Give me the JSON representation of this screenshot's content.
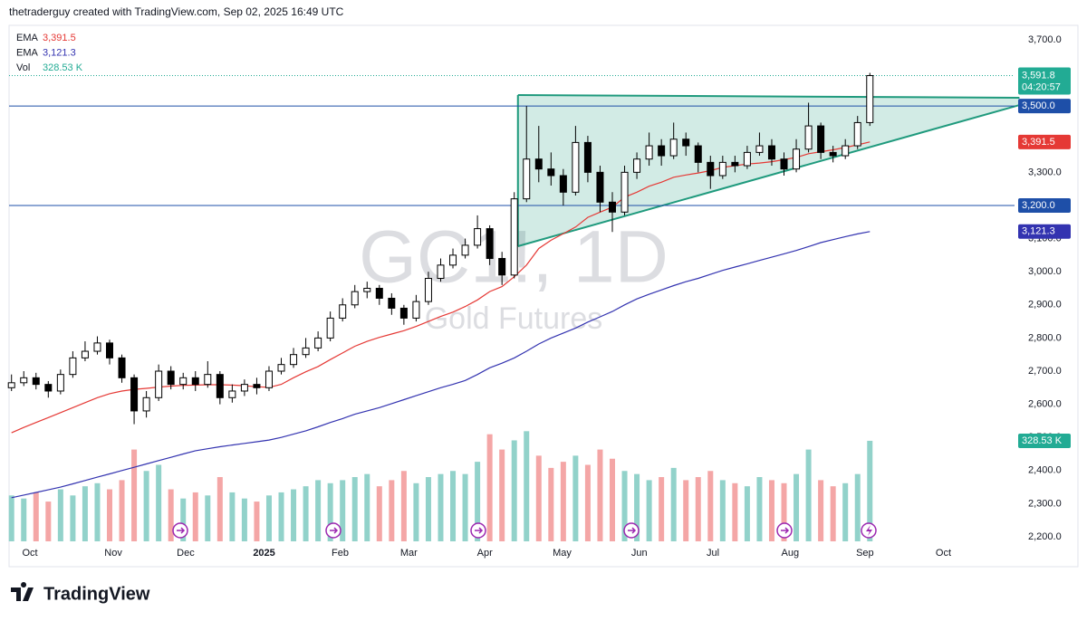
{
  "header": "thetraderguy created with TradingView.com, Sep 02, 2025 16:49 UTC",
  "footer": "TradingView",
  "chart_data": {
    "type": "candlestick",
    "symbol": "GC1!, 1D",
    "subtitle": "Gold Futures",
    "xlim": [
      -0.2,
      81.8
    ],
    "xticks": [
      {
        "value": 1.5,
        "label": "Oct"
      },
      {
        "value": 8.3,
        "label": "Nov"
      },
      {
        "value": 14.2,
        "label": "Dec"
      },
      {
        "value": 20.6,
        "label": "2025"
      },
      {
        "value": 26.8,
        "label": "Feb"
      },
      {
        "value": 32.4,
        "label": "Mar"
      },
      {
        "value": 38.6,
        "label": "Apr"
      },
      {
        "value": 44.9,
        "label": "May"
      },
      {
        "value": 51.2,
        "label": "Jun"
      },
      {
        "value": 57.2,
        "label": "Jul"
      },
      {
        "value": 63.5,
        "label": "Aug"
      },
      {
        "value": 69.6,
        "label": "Sep"
      },
      {
        "value": 76,
        "label": "Oct"
      }
    ],
    "ylim": [
      2181,
      3738
    ],
    "yticks": [
      {
        "value": 2200,
        "label": "2,200.0"
      },
      {
        "value": 2300,
        "label": "2,300.0"
      },
      {
        "value": 2400,
        "label": "2,400.0"
      },
      {
        "value": 2500,
        "label": "2,500.0"
      },
      {
        "value": 2600,
        "label": "2,600.0"
      },
      {
        "value": 2700,
        "label": "2,700.0"
      },
      {
        "value": 2800,
        "label": "2,800.0"
      },
      {
        "value": 2900,
        "label": "2,900.0"
      },
      {
        "value": 3000,
        "label": "3,000.0"
      },
      {
        "value": 3100,
        "label": "3,100.0"
      },
      {
        "value": 3200,
        "label": "3,200.0"
      },
      {
        "value": 3300,
        "label": "3,300.0"
      },
      {
        "value": 3400,
        "label": "3,400.0"
      },
      {
        "value": 3500,
        "label": "3,500.0"
      },
      {
        "value": 3600,
        "label": "3,600.0"
      },
      {
        "value": 3700,
        "label": "3,700.0"
      }
    ],
    "grid": false,
    "up_color": "#ffffff",
    "down_color": "#000000",
    "wick_color": "#000000",
    "open": [
      2650,
      2665,
      2680,
      2660,
      2640,
      2690,
      2740,
      2760,
      2785,
      2740,
      2680,
      2580,
      2620,
      2700,
      2660,
      2680,
      2660,
      2690,
      2620,
      2640,
      2660,
      2650,
      2700,
      2720,
      2750,
      2770,
      2800,
      2860,
      2900,
      2940,
      2950,
      2920,
      2890,
      2860,
      2910,
      2980,
      3020,
      3050,
      3080,
      3130,
      3040,
      2990,
      3220,
      3340,
      3310,
      3290,
      3240,
      3390,
      3300,
      3210,
      3180,
      3300,
      3340,
      3380,
      3350,
      3400,
      3380,
      3330,
      3290,
      3330,
      3320,
      3360,
      3380,
      3340,
      3310,
      3370,
      3440,
      3360,
      3350,
      3380,
      3450
    ],
    "high": [
      2690,
      2700,
      2695,
      2670,
      2705,
      2760,
      2790,
      2805,
      2795,
      2750,
      2690,
      2640,
      2720,
      2715,
      2695,
      2700,
      2730,
      2700,
      2660,
      2675,
      2680,
      2715,
      2740,
      2770,
      2800,
      2820,
      2880,
      2920,
      2960,
      2970,
      2960,
      2935,
      2900,
      2930,
      3000,
      3040,
      3070,
      3100,
      3170,
      3140,
      3060,
      3240,
      3500,
      3440,
      3360,
      3310,
      3440,
      3410,
      3320,
      3240,
      3320,
      3360,
      3420,
      3400,
      3450,
      3420,
      3390,
      3350,
      3350,
      3350,
      3380,
      3420,
      3400,
      3360,
      3400,
      3510,
      3450,
      3380,
      3400,
      3470,
      3600
    ],
    "low": [
      2640,
      2655,
      2645,
      2620,
      2630,
      2680,
      2730,
      2750,
      2720,
      2665,
      2540,
      2560,
      2610,
      2645,
      2645,
      2640,
      2650,
      2600,
      2605,
      2625,
      2630,
      2640,
      2690,
      2710,
      2740,
      2760,
      2790,
      2850,
      2890,
      2920,
      2900,
      2870,
      2840,
      2850,
      2900,
      2970,
      3010,
      3040,
      3070,
      3020,
      2960,
      2980,
      3210,
      3270,
      3260,
      3200,
      3230,
      3270,
      3180,
      3120,
      3170,
      3280,
      3320,
      3320,
      3340,
      3350,
      3300,
      3250,
      3280,
      3300,
      3310,
      3350,
      3320,
      3290,
      3300,
      3360,
      3340,
      3330,
      3340,
      3370,
      3440
    ],
    "close": [
      2665,
      2680,
      2660,
      2640,
      2690,
      2740,
      2760,
      2785,
      2740,
      2680,
      2580,
      2620,
      2700,
      2660,
      2680,
      2660,
      2690,
      2620,
      2640,
      2660,
      2650,
      2700,
      2720,
      2750,
      2770,
      2800,
      2860,
      2900,
      2940,
      2950,
      2920,
      2890,
      2860,
      2910,
      2980,
      3020,
      3050,
      3080,
      3130,
      3040,
      2990,
      3220,
      3340,
      3310,
      3290,
      3240,
      3390,
      3300,
      3210,
      3180,
      3300,
      3340,
      3380,
      3350,
      3400,
      3380,
      3330,
      3290,
      3330,
      3320,
      3360,
      3380,
      3340,
      3310,
      3370,
      3440,
      3360,
      3350,
      3380,
      3450,
      3591.8
    ],
    "indicators": [
      {
        "name": "EMA",
        "color": "#e53935",
        "last_value_label": "3,391.5",
        "values": [
          2514,
          2530,
          2545,
          2560,
          2575,
          2590,
          2605,
          2620,
          2632,
          2640,
          2645,
          2648,
          2652,
          2655,
          2657,
          2658,
          2659,
          2659,
          2658,
          2656,
          2653,
          2651,
          2660,
          2680,
          2698,
          2714,
          2735,
          2755,
          2775,
          2790,
          2802,
          2812,
          2822,
          2835,
          2850,
          2865,
          2878,
          2895,
          2915,
          2940,
          2955,
          2985,
          3020,
          3070,
          3095,
          3115,
          3135,
          3164,
          3180,
          3195,
          3225,
          3240,
          3258,
          3270,
          3285,
          3292,
          3298,
          3305,
          3315,
          3320,
          3325,
          3328,
          3332,
          3338,
          3345,
          3356,
          3362,
          3368,
          3375,
          3383,
          3391.5
        ]
      },
      {
        "name": "EMA",
        "color": "#3333b0",
        "last_value_label": "3,121.3",
        "values": [
          2318,
          2326,
          2334,
          2342,
          2350,
          2360,
          2370,
          2380,
          2390,
          2400,
          2410,
          2420,
          2430,
          2440,
          2450,
          2460,
          2466,
          2472,
          2477,
          2482,
          2487,
          2492,
          2500,
          2510,
          2520,
          2532,
          2545,
          2557,
          2570,
          2580,
          2590,
          2602,
          2614,
          2626,
          2638,
          2650,
          2660,
          2672,
          2690,
          2710,
          2724,
          2740,
          2760,
          2782,
          2800,
          2815,
          2830,
          2848,
          2864,
          2880,
          2900,
          2918,
          2932,
          2945,
          2958,
          2970,
          2980,
          2992,
          3004,
          3014,
          3024,
          3034,
          3044,
          3054,
          3064,
          3076,
          3088,
          3097,
          3106,
          3114,
          3121.3
        ]
      }
    ],
    "volume": {
      "name": "Vol",
      "color": "#22ab94",
      "up_color": "#92d2ca",
      "down_color": "#f4a6a6",
      "last_value_label": "328.53 K",
      "values": [
        150,
        140,
        160,
        130,
        170,
        150,
        180,
        190,
        170,
        200,
        300,
        230,
        250,
        170,
        140,
        160,
        150,
        210,
        160,
        140,
        130,
        150,
        160,
        170,
        180,
        200,
        190,
        200,
        210,
        220,
        180,
        200,
        230,
        190,
        210,
        220,
        230,
        220,
        260,
        350,
        300,
        330,
        360,
        280,
        240,
        260,
        280,
        250,
        300,
        270,
        230,
        220,
        200,
        210,
        240,
        200,
        210,
        230,
        200,
        190,
        180,
        210,
        200,
        190,
        220,
        300,
        200,
        180,
        190,
        220,
        328.53
      ]
    },
    "horizontal_lines": {
      "color": "#1e4fa8",
      "levels": [
        {
          "value": 3500,
          "label": "3,500.0"
        },
        {
          "value": 3200,
          "label": "3,200.0"
        }
      ]
    },
    "last_price": {
      "value": 3591.8,
      "label": "3,591.8",
      "countdown": "04:20:57",
      "color": "#22ab94"
    },
    "triangle": {
      "color": "#1f9a7d",
      "x": [
        41.3,
        82.2
      ],
      "upper": [
        3533,
        3525
      ],
      "lower": [
        3077,
        3503
      ]
    }
  }
}
